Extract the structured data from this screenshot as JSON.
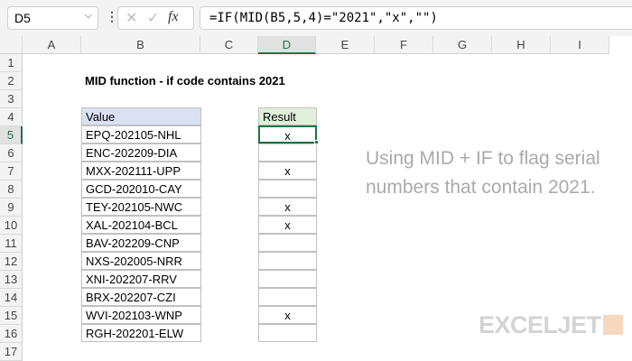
{
  "formula_bar": {
    "name_box": "D5",
    "formula": "=IF(MID(B5,5,4)=\"2021\",\"x\",\"\")"
  },
  "columns": [
    "A",
    "B",
    "C",
    "D",
    "E",
    "F",
    "G",
    "H",
    "I"
  ],
  "rows": [
    "1",
    "2",
    "3",
    "4",
    "5",
    "6",
    "7",
    "8",
    "9",
    "10",
    "11",
    "12",
    "13",
    "14",
    "15",
    "16",
    "17"
  ],
  "title": "MID function - if code contains 2021",
  "table": {
    "header_value": "Value",
    "header_result": "Result",
    "values": [
      "EPQ-202105-NHL",
      "ENC-202209-DIA",
      "MXX-202111-UPP",
      "GCD-202010-CAY",
      "TEY-202105-NWC",
      "XAL-202104-BCL",
      "BAV-202209-CNP",
      "NXS-202005-NRR",
      "XNI-202207-RRV",
      "BRX-202207-CZI",
      "WVI-202103-WNP",
      "RGH-202201-ELW"
    ],
    "results": [
      "x",
      "",
      "x",
      "",
      "x",
      "x",
      "",
      "",
      "",
      "",
      "x",
      ""
    ]
  },
  "note": "Using MID + IF to flag serial numbers that contain 2021.",
  "logo": "EXCELJET",
  "colors": {
    "selection": "#217346",
    "value_header": "#dae1f3",
    "result_header": "#e2efda"
  }
}
